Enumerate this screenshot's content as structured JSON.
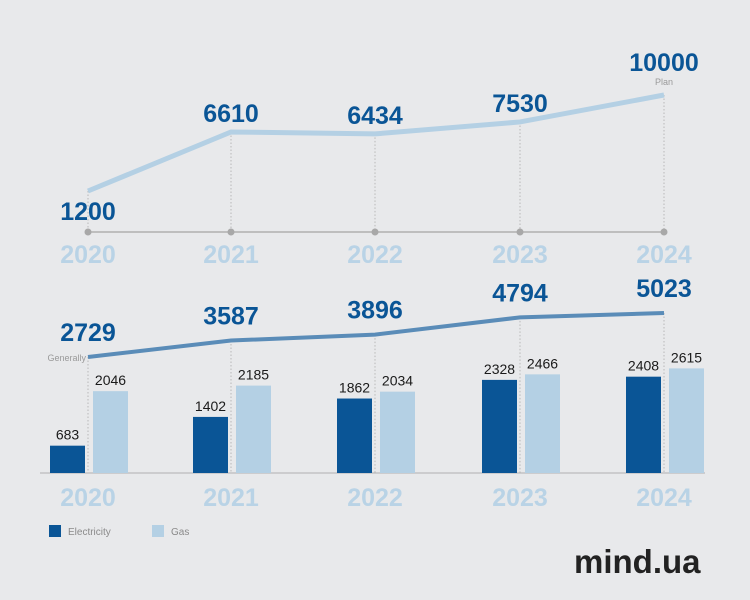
{
  "chart_data": [
    {
      "type": "line",
      "title": "",
      "categories": [
        "2020",
        "2021",
        "2022",
        "2023",
        "2024"
      ],
      "values": [
        1200,
        6610,
        6434,
        7530,
        10000
      ],
      "annotations": [
        {
          "category": "2024",
          "text": "Plan"
        }
      ],
      "color": "#b4d0e4"
    },
    {
      "type": "bar",
      "categories": [
        "2020",
        "2021",
        "2022",
        "2023",
        "2024"
      ],
      "series": [
        {
          "name": "Electricity",
          "values": [
            683,
            1402,
            1862,
            2328,
            2408
          ],
          "color": "#0a5596"
        },
        {
          "name": "Gas",
          "values": [
            2046,
            2185,
            2034,
            2466,
            2615
          ],
          "color": "#b4d0e4"
        }
      ],
      "total_line": {
        "name": "Generally",
        "values": [
          2729,
          3587,
          3896,
          4794,
          5023
        ],
        "color": "#5a8cb8"
      },
      "legend_placement": "bottom-left"
    }
  ],
  "logo": "mind.ua"
}
